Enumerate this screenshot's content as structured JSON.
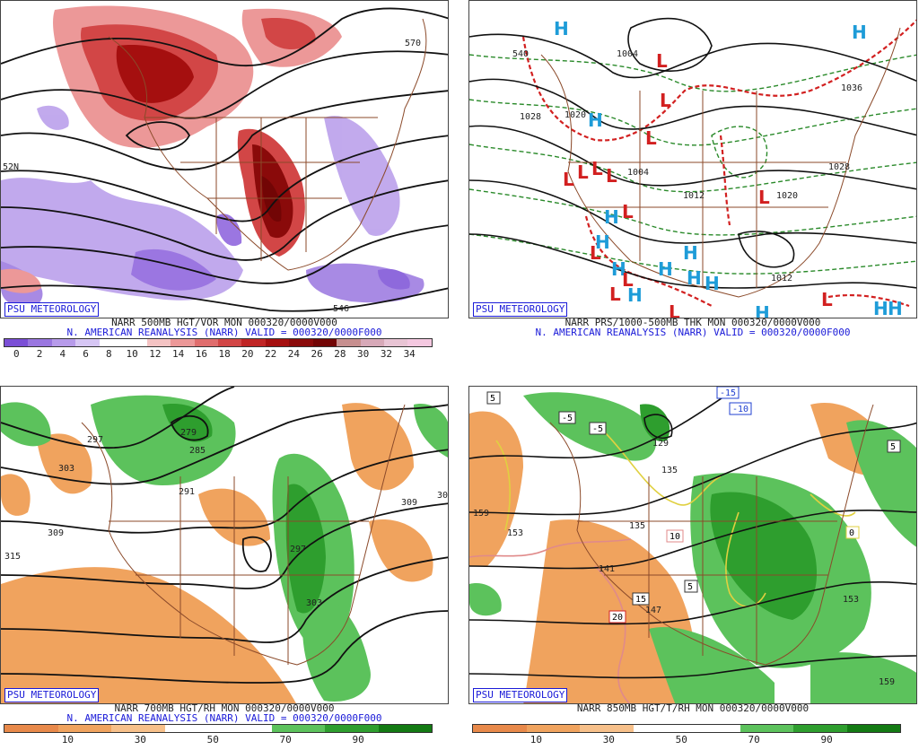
{
  "branding": "PSU METEOROLOGY",
  "panels": {
    "tl": {
      "line1": "NARR 500MB HGT/VOR MON 000320/0000V000",
      "line2": "N. AMERICAN REANALYSIS (NARR) VALID = 000320/0000F000",
      "contour_labels": [
        "570",
        "52N",
        "546"
      ],
      "colorbar_ticks": [
        "0",
        "2",
        "4",
        "6",
        "8",
        "10",
        "12",
        "14",
        "16",
        "18",
        "20",
        "22",
        "24",
        "26",
        "28",
        "30",
        "32",
        "34"
      ],
      "colorbar_colors": [
        "#7b4fd6",
        "#9a76e0",
        "#b79bea",
        "#d6c6f4",
        "#ffffff",
        "#ffffff",
        "#f4c3c3",
        "#ec9898",
        "#e06d6d",
        "#d24646",
        "#c02525",
        "#a50f0f",
        "#8a0a0a",
        "#720505",
        "#c78f8f",
        "#d7a9b8",
        "#e8c4d4",
        "#f4c8e0"
      ]
    },
    "tr": {
      "line1": "NARR PRS/1000-500MB THK MON 000320/0000V000",
      "line2": "N. AMERICAN REANALYSIS (NARR) VALID = 000320/0000F000",
      "contour_labels": [
        "540",
        "1004",
        "1028",
        "1020",
        "1004",
        "1012",
        "1020",
        "1036",
        "1028",
        "1012"
      ]
    },
    "bl": {
      "line1": "NARR 700MB HGT/RH MON 000320/0000V000",
      "line2": "N. AMERICAN REANALYSIS (NARR) VALID = 000320/0000F000",
      "contour_labels": [
        "297",
        "303",
        "309",
        "315",
        "279",
        "285",
        "291",
        "297",
        "303",
        "309",
        "30"
      ],
      "colorbar_ticks": [
        "10",
        "30",
        "50",
        "70",
        "90"
      ],
      "colorbar_colors": [
        "#e8894a",
        "#f0a35e",
        "#f7c08a",
        "#ffffff",
        "#ffffff",
        "#5cc25c",
        "#2e9e2e",
        "#137a13"
      ]
    },
    "br": {
      "line1": "NARR 850MB HGT/T/RH MON 000320/0000V000",
      "contour_labels": [
        "5",
        "-5",
        "-15",
        "-10",
        "-5",
        "159",
        "153",
        "135",
        "141",
        "147",
        "153",
        "129",
        "135",
        "159"
      ],
      "temp_boxes": [
        "5",
        "-5",
        "-5",
        "-10",
        "-15",
        "10",
        "15",
        "20",
        "5",
        "5",
        "0"
      ],
      "colorbar_ticks": [
        "10",
        "30",
        "50",
        "70",
        "90"
      ],
      "colorbar_colors": [
        "#e8894a",
        "#f0a35e",
        "#f7c08a",
        "#ffffff",
        "#ffffff",
        "#5cc25c",
        "#2e9e2e",
        "#137a13"
      ]
    }
  }
}
